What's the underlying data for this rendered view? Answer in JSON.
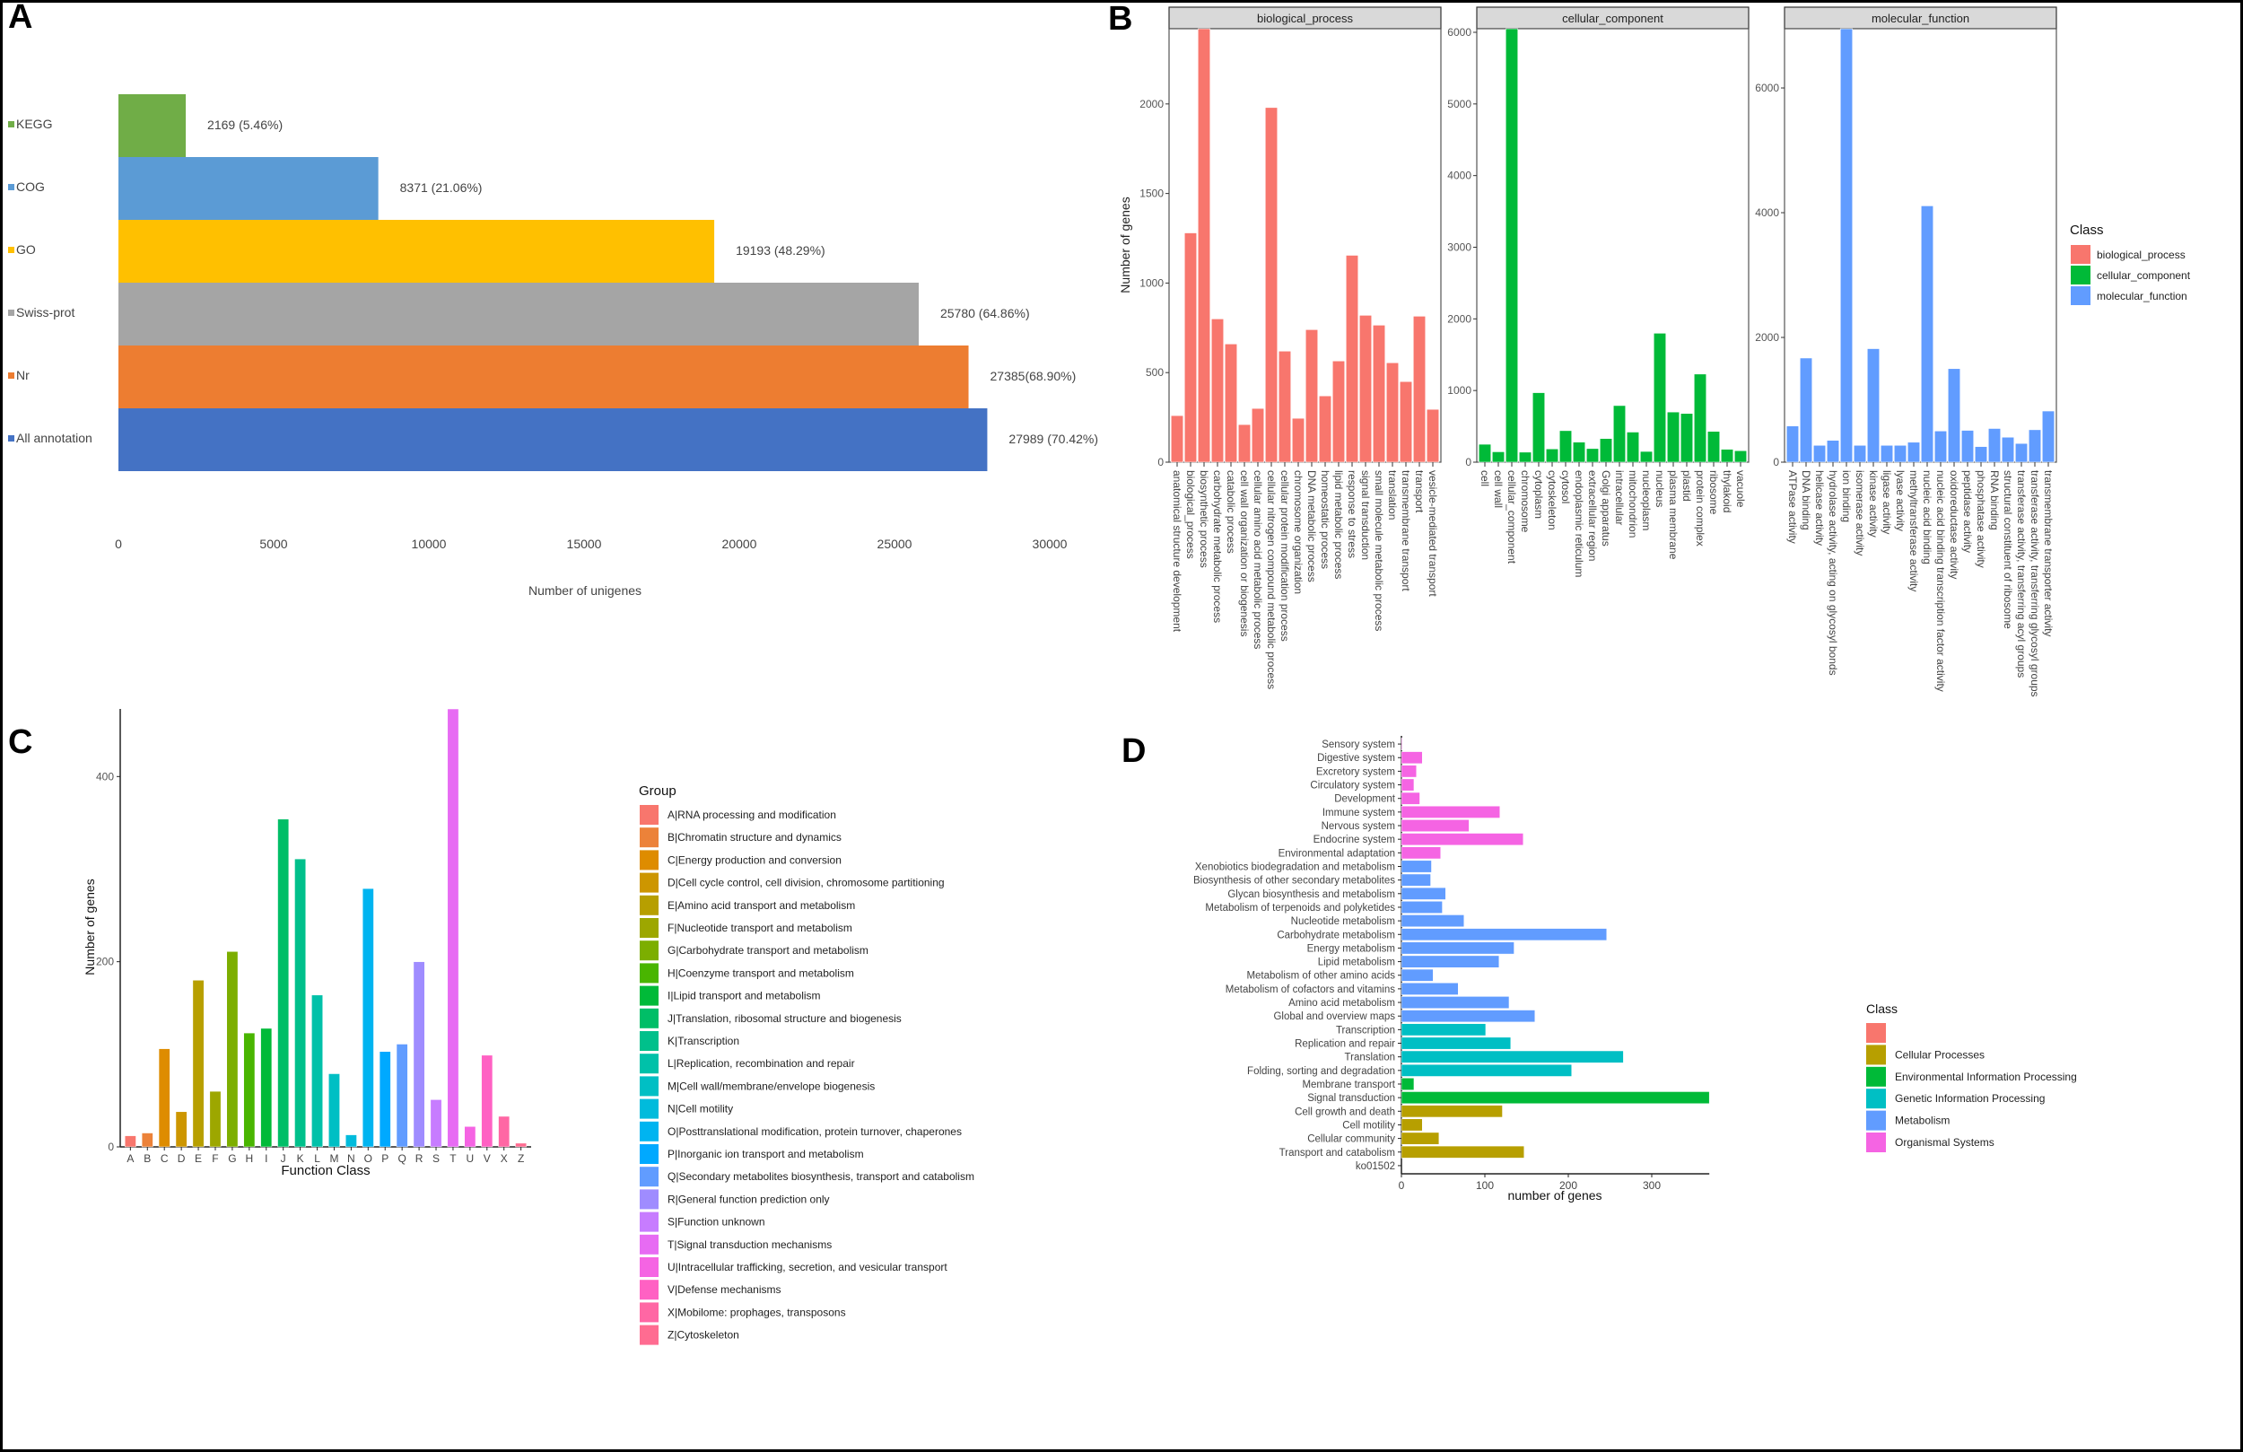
{
  "panel_letters": [
    "A",
    "B",
    "C",
    "D"
  ],
  "chart_data": [
    {
      "id": "A",
      "type": "bar",
      "orientation": "horizontal",
      "categories": [
        "KEGG",
        "COG",
        "GO",
        "Swiss-prot",
        "Nr",
        "All annotation"
      ],
      "values": [
        2169,
        8371,
        19193,
        25780,
        27385,
        27989
      ],
      "value_labels": [
        "2169 (5.46%)",
        "8371 (21.06%)",
        "19193 (48.29%)",
        "25780 (64.86%)",
        "27385(68.90%)",
        "27989 (70.42%)"
      ],
      "colors": [
        "#70AD47",
        "#5B9BD5",
        "#FFC000",
        "#A5A5A5",
        "#ED7D31",
        "#4472C4"
      ],
      "xlabel": "Number of unigenes",
      "xlim": [
        0,
        30000
      ],
      "xticks": [
        "0",
        "5000",
        "10000",
        "15000",
        "20000",
        "25000",
        "30000"
      ]
    },
    {
      "id": "B",
      "type": "bar",
      "ylabel": "Number of genes",
      "legend_title": "Class",
      "legend_position": "right",
      "legend": [
        "biological_process",
        "cellular_component",
        "molecular_function"
      ],
      "facets": [
        {
          "name": "biological_process",
          "color": "#F8766D",
          "ylim": [
            0,
            2420
          ],
          "yticks": [
            "0",
            "500",
            "1000",
            "1500",
            "2000"
          ],
          "categories": [
            "anatomical structure development",
            "biological_process",
            "biosynthetic process",
            "carbohydrate metabolic process",
            "catabolic process",
            "cell wall organization or biogenesis",
            "cellular amino acid metabolic process",
            "cellular nitrogen compound metabolic process",
            "cellular protein modification process",
            "chromosome organization",
            "DNA metabolic process",
            "homeostatic process",
            "lipid metabolic process",
            "response to stress",
            "signal transduction",
            "small molecule metabolic process",
            "translation",
            "transmembrane transport",
            "transport",
            "vesicle-mediated transport"
          ],
          "values": [
            260,
            1280,
            2420,
            800,
            660,
            210,
            300,
            1980,
            620,
            245,
            740,
            370,
            565,
            1155,
            820,
            765,
            555,
            450,
            815,
            295
          ]
        },
        {
          "name": "cellular_component",
          "color": "#00BA38",
          "ylim": [
            0,
            6050
          ],
          "yticks": [
            "0",
            "1000",
            "2000",
            "3000",
            "4000",
            "5000",
            "6000"
          ],
          "categories": [
            "cell",
            "cell wall",
            "cellular_component",
            "chromosome",
            "cytoplasm",
            "cytoskeleton",
            "cytosol",
            "endoplasmic reticulum",
            "extracellular region",
            "Golgi apparatus",
            "intracellular",
            "mitochondrion",
            "nucleoplasm",
            "nucleus",
            "plasma membrane",
            "plastid",
            "protein complex",
            "ribosome",
            "thylakoid",
            "vacuole"
          ],
          "values": [
            250,
            145,
            6050,
            140,
            970,
            185,
            440,
            280,
            190,
            330,
            790,
            420,
            150,
            1800,
            700,
            680,
            1230,
            430,
            180,
            160
          ]
        },
        {
          "name": "molecular_function",
          "color": "#619CFF",
          "ylim": [
            0,
            6950
          ],
          "yticks": [
            "0",
            "2000",
            "4000",
            "6000"
          ],
          "categories": [
            "ATPase activity",
            "DNA binding",
            "helicase activity",
            "hydrolase activity, acting on glycosyl bonds",
            "ion binding",
            "isomerase activity",
            "kinase activity",
            "ligase activity",
            "lyase activity",
            "methyltransferase activity",
            "nucleic acid binding",
            "nucleic acid binding transcription factor activity",
            "oxidoreductase activity",
            "peptidase activity",
            "phosphatase activity",
            "RNA binding",
            "structural constituent of ribosome",
            "transferase activity, transferring acyl groups",
            "transferase activity, transferring glycosyl groups",
            "transmembrane transporter activity"
          ],
          "values": [
            580,
            1670,
            270,
            350,
            6950,
            270,
            1820,
            270,
            270,
            320,
            4110,
            500,
            1500,
            510,
            250,
            540,
            400,
            300,
            520,
            820
          ]
        }
      ]
    },
    {
      "id": "C",
      "type": "bar",
      "xlabel": "Function Class",
      "ylabel": "Number of genes",
      "ylim": [
        0,
        473
      ],
      "yticks": [
        "0",
        "200",
        "400"
      ],
      "categories": [
        "A",
        "B",
        "C",
        "D",
        "E",
        "F",
        "G",
        "H",
        "I",
        "J",
        "K",
        "L",
        "M",
        "N",
        "O",
        "P",
        "Q",
        "R",
        "S",
        "T",
        "U",
        "V",
        "X",
        "Z"
      ],
      "values": [
        12,
        15,
        106,
        38,
        180,
        60,
        211,
        123,
        128,
        354,
        311,
        164,
        79,
        13,
        279,
        103,
        111,
        200,
        51,
        473,
        22,
        99,
        33,
        4
      ],
      "colors": [
        "#F8766D",
        "#EC8239",
        "#DE8C00",
        "#CD9600",
        "#B79F00",
        "#9DA700",
        "#7CAE00",
        "#49B500",
        "#00BA38",
        "#00BE67",
        "#00C08B",
        "#00C1A9",
        "#00BFC4",
        "#00BBDC",
        "#00B4F0",
        "#00A9FF",
        "#619CFF",
        "#9F8CFF",
        "#C77CFF",
        "#E76BF3",
        "#F564E3",
        "#FF61C3",
        "#FF67A4",
        "#FF6C91"
      ],
      "legend_title": "Group",
      "legend_position": "right",
      "legend": [
        "A|RNA processing and modification",
        "B|Chromatin structure and dynamics",
        "C|Energy production and conversion",
        "D|Cell cycle control, cell division, chromosome partitioning",
        "E|Amino acid transport and metabolism",
        "F|Nucleotide transport and metabolism",
        "G|Carbohydrate transport and metabolism",
        "H|Coenzyme transport and metabolism",
        "I|Lipid transport and metabolism",
        "J|Translation, ribosomal structure and biogenesis",
        "K|Transcription",
        "L|Replication, recombination and repair",
        "M|Cell wall/membrane/envelope biogenesis",
        "N|Cell motility",
        "O|Posttranslational modification, protein turnover, chaperones",
        "P|Inorganic ion transport and metabolism",
        "Q|Secondary metabolites biosynthesis, transport and catabolism",
        "R|General function prediction only",
        "S|Function unknown",
        "T|Signal transduction mechanisms",
        "U|Intracellular trafficking, secretion, and vesicular transport",
        "V|Defense mechanisms",
        "X|Mobilome: prophages, transposons",
        "Z|Cytoskeleton"
      ]
    },
    {
      "id": "D",
      "type": "bar",
      "orientation": "horizontal",
      "xlabel": "number of genes",
      "xlim": [
        0,
        369
      ],
      "xticks": [
        "0",
        "100",
        "200",
        "300"
      ],
      "categories": [
        "Sensory system",
        "Digestive system",
        "Excretory system",
        "Circulatory system",
        "Development",
        "Immune system",
        "Nervous system",
        "Endocrine system",
        "Environmental adaptation",
        "Xenobiotics biodegradation and metabolism",
        "Biosynthesis of other secondary metabolites",
        "Glycan biosynthesis and metabolism",
        "Metabolism of terpenoids and polyketides",
        "Nucleotide metabolism",
        "Carbohydrate metabolism",
        "Energy metabolism",
        "Lipid metabolism",
        "Metabolism of other amino acids",
        "Metabolism of cofactors and vitamins",
        "Amino acid metabolism",
        "Global and overview maps",
        "Transcription",
        "Replication and repair",
        "Translation",
        "Folding, sorting and degradation",
        "Membrane transport",
        "Signal transduction",
        "Cell growth and death",
        "Cell motility",
        "Cellular community",
        "Transport and catabolism",
        "ko01502"
      ],
      "values": [
        1,
        25,
        18,
        15,
        22,
        118,
        81,
        146,
        47,
        36,
        35,
        53,
        49,
        75,
        246,
        135,
        117,
        38,
        68,
        129,
        160,
        101,
        131,
        266,
        204,
        15,
        369,
        121,
        25,
        45,
        147,
        0
      ],
      "class_index": [
        5,
        5,
        5,
        5,
        5,
        5,
        5,
        5,
        5,
        4,
        4,
        4,
        4,
        4,
        4,
        4,
        4,
        4,
        4,
        4,
        4,
        3,
        3,
        3,
        3,
        2,
        2,
        1,
        1,
        1,
        1,
        0
      ],
      "legend_title": "Class",
      "legend_position": "right",
      "legend": [
        "",
        "Cellular Processes",
        "Environmental Information Processing",
        "Genetic Information Processing",
        "Metabolism",
        "Organismal Systems"
      ],
      "legend_colors": [
        "#F8766D",
        "#B79F00",
        "#00BA38",
        "#00BFC4",
        "#619CFF",
        "#F564E3"
      ]
    }
  ]
}
